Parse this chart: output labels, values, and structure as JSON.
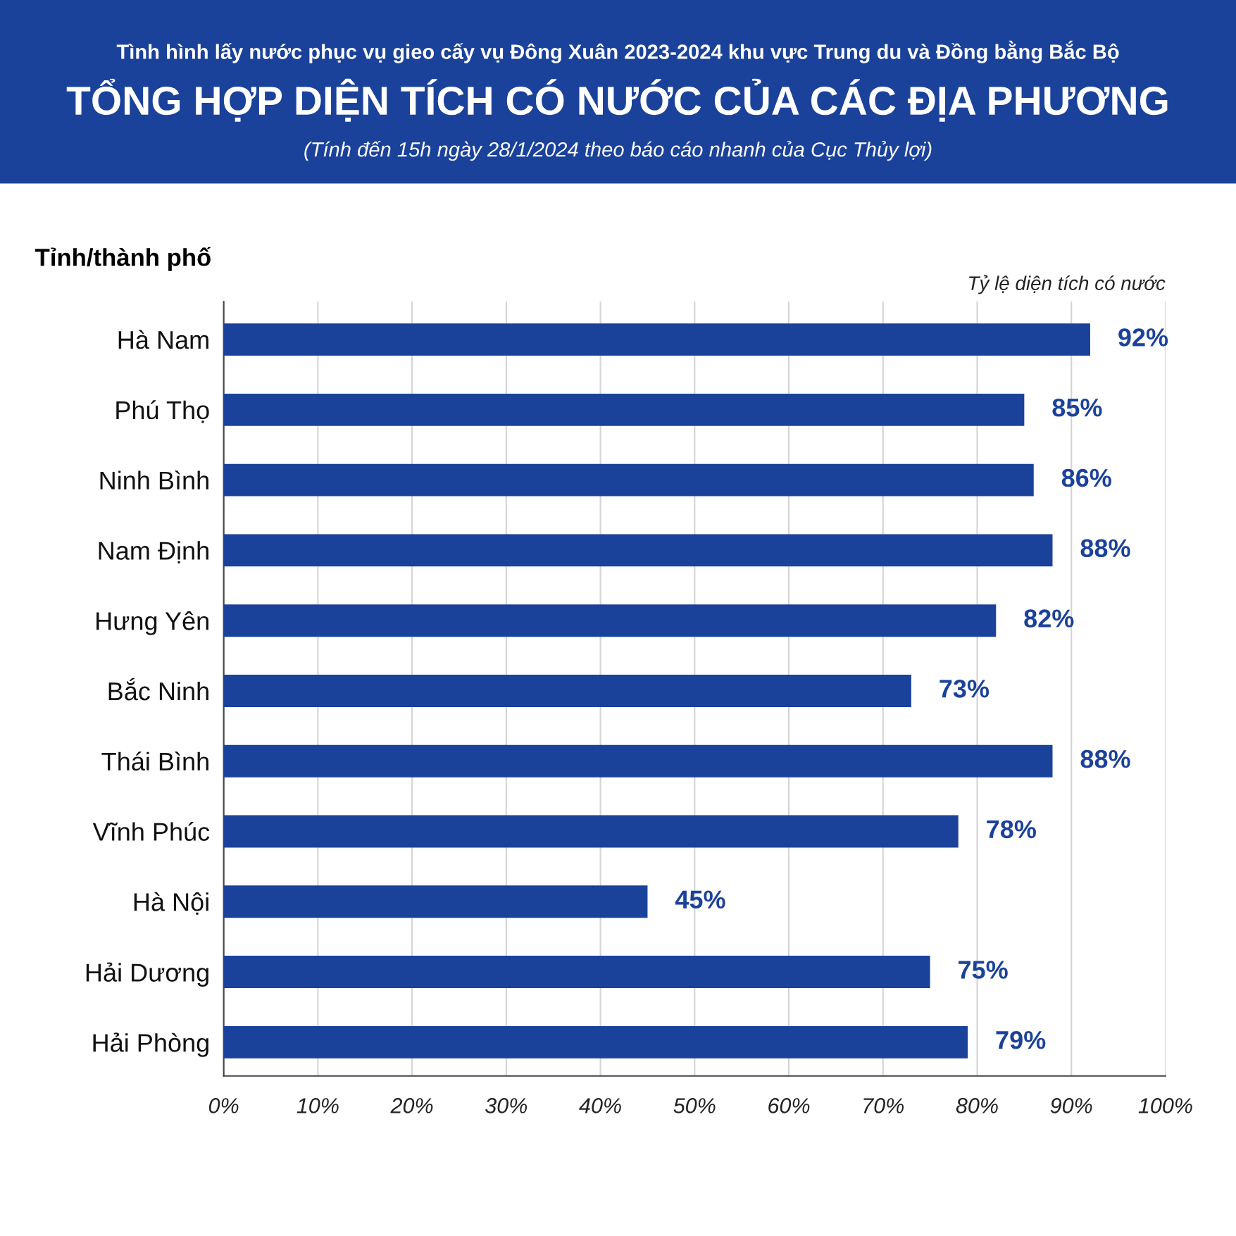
{
  "chart_data": {
    "type": "bar",
    "orientation": "horizontal",
    "title": "TỔNG HỢP DIỆN TÍCH CÓ NƯỚC CỦA CÁC ĐỊA PHƯƠNG",
    "subtitle": "Tình hình lấy nước phục vụ gieo cấy vụ Đông Xuân 2023-2024 khu vực Trung du và Đồng bằng Bắc Bộ",
    "annotations": [
      "(Tính đến 15h ngày 28/1/2024 theo báo cáo nhanh của Cục Thủy lợi)"
    ],
    "ylabel": "Tỉnh/thành phố",
    "xlabel": "Tỷ lệ diện tích có nước",
    "categories": [
      "Hà Nam",
      "Phú Thọ",
      "Ninh Bình",
      "Nam Định",
      "Hưng Yên",
      "Bắc Ninh",
      "Thái Bình",
      "Vĩnh Phúc",
      "Hà Nội",
      "Hải Dương",
      "Hải Phòng"
    ],
    "values": [
      92,
      85,
      86,
      88,
      82,
      73,
      88,
      78,
      45,
      75,
      79
    ],
    "value_labels": [
      "92%",
      "85%",
      "86%",
      "88%",
      "82%",
      "73%",
      "88%",
      "78%",
      "45%",
      "75%",
      "79%"
    ],
    "color": "#1b429a",
    "xlim": [
      0,
      100
    ],
    "xticks": [
      {
        "value": 0,
        "label": "0%"
      },
      {
        "value": 10,
        "label": "10%"
      },
      {
        "value": 20,
        "label": "20%"
      },
      {
        "value": 30,
        "label": "30%"
      },
      {
        "value": 40,
        "label": "40%"
      },
      {
        "value": 50,
        "label": "50%"
      },
      {
        "value": 60,
        "label": "60%"
      },
      {
        "value": 70,
        "label": "70%"
      },
      {
        "value": 80,
        "label": "80%"
      },
      {
        "value": 90,
        "label": "90%"
      },
      {
        "value": 100,
        "label": "100%"
      }
    ],
    "grid": "x",
    "legend": false
  }
}
